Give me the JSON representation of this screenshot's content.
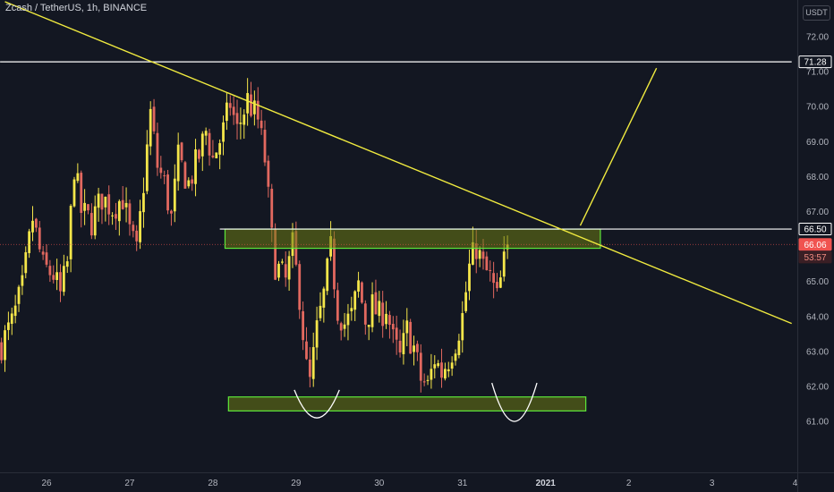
{
  "header": {
    "title": "Zcash / TetherUS, 1h, BINANCE",
    "currency": "USDT"
  },
  "colors": {
    "background": "#131722",
    "bull": "#f5e64a",
    "bear": "#e2685f",
    "trendline": "#f0ea3f",
    "zone_fill": "#6b7a12",
    "zone_border": "#5ee83a",
    "resistance_line": "#ffffff",
    "current_price_badge": "#f05350"
  },
  "chart_data": {
    "type": "candlestick",
    "symbol": "Zcash / TetherUS",
    "interval": "1h",
    "exchange": "BINANCE",
    "ylim": [
      60.4,
      72.6
    ],
    "y_ticks": [
      "72.00",
      "71.00",
      "70.00",
      "69.00",
      "68.00",
      "67.00",
      "65.00",
      "64.00",
      "63.00",
      "62.00",
      "61.00"
    ],
    "x_ticks": [
      {
        "label": "26",
        "time": 0,
        "bold": false
      },
      {
        "label": "27",
        "time": 24,
        "bold": false
      },
      {
        "label": "28",
        "time": 48,
        "bold": false
      },
      {
        "label": "29",
        "time": 72,
        "bold": false
      },
      {
        "label": "30",
        "time": 96,
        "bold": false
      },
      {
        "label": "31",
        "time": 120,
        "bold": false
      },
      {
        "label": "2021",
        "time": 144,
        "bold": true
      },
      {
        "label": "2",
        "time": 168,
        "bold": false
      },
      {
        "label": "3",
        "time": 192,
        "bold": false
      },
      {
        "label": "4",
        "time": 216,
        "bold": false
      }
    ],
    "x_range": [
      -13.4,
      215
    ],
    "price_labels": [
      {
        "value": 71.28,
        "text": "71.28",
        "style": "outline"
      },
      {
        "value": 66.5,
        "text": "66.50",
        "style": "outline"
      },
      {
        "value": 66.06,
        "text": "66.06",
        "style": "red"
      },
      {
        "value": 65.7,
        "text": "53:57",
        "style": "red-dark"
      }
    ],
    "current_price": 66.06,
    "horizontal_lines": [
      {
        "price": 71.28,
        "from": -13.4,
        "to": 215
      },
      {
        "price": 66.5,
        "from": 50,
        "to": 215
      }
    ],
    "trendlines": [
      {
        "points": [
          [
            -12,
            73.0
          ],
          [
            215,
            63.8
          ]
        ]
      },
      {
        "points": [
          [
            154,
            66.6
          ],
          [
            176,
            71.1
          ]
        ]
      }
    ],
    "zones": [
      {
        "time_from": 51.5,
        "time_to": 159.8,
        "price_from": 65.95,
        "price_to": 66.5
      },
      {
        "time_from": 52.5,
        "time_to": 155.6,
        "price_from": 61.3,
        "price_to": 61.7
      }
    ],
    "arcs": [
      {
        "center_time": 78,
        "start_price": 61.9,
        "bottom_price": 61.1,
        "half_width_time": 6.5
      },
      {
        "center_time": 135,
        "start_price": 62.1,
        "bottom_price": 61.0,
        "half_width_time": 6.5
      }
    ],
    "anchors": [
      {
        "t": -13,
        "p": 63.2
      },
      {
        "t": -10,
        "p": 63.8
      },
      {
        "t": -7,
        "p": 64.8
      },
      {
        "t": -4,
        "p": 66.8
      },
      {
        "t": -1,
        "p": 65.4
      },
      {
        "t": 2,
        "p": 65.2
      },
      {
        "t": 4,
        "p": 64.6
      },
      {
        "t": 6,
        "p": 65.5
      },
      {
        "t": 8,
        "p": 68.3
      },
      {
        "t": 10,
        "p": 67.0
      },
      {
        "t": 13,
        "p": 66.7
      },
      {
        "t": 16,
        "p": 67.4
      },
      {
        "t": 19,
        "p": 67.1
      },
      {
        "t": 22,
        "p": 67.4
      },
      {
        "t": 24,
        "p": 66.4
      },
      {
        "t": 26,
        "p": 65.8
      },
      {
        "t": 28,
        "p": 67.8
      },
      {
        "t": 30,
        "p": 69.8
      },
      {
        "t": 32,
        "p": 68.3
      },
      {
        "t": 34,
        "p": 67.8
      },
      {
        "t": 36,
        "p": 66.8
      },
      {
        "t": 38,
        "p": 68.5
      },
      {
        "t": 41,
        "p": 67.8
      },
      {
        "t": 44,
        "p": 68.6
      },
      {
        "t": 46,
        "p": 69.3
      },
      {
        "t": 48,
        "p": 68.5
      },
      {
        "t": 51,
        "p": 69.3
      },
      {
        "t": 53,
        "p": 70.1
      },
      {
        "t": 55,
        "p": 69.3
      },
      {
        "t": 58,
        "p": 70.2
      },
      {
        "t": 61,
        "p": 69.6
      },
      {
        "t": 63,
        "p": 68.5
      },
      {
        "t": 65,
        "p": 66.2
      },
      {
        "t": 66,
        "p": 65.5
      },
      {
        "t": 69,
        "p": 65.0
      },
      {
        "t": 71,
        "p": 66.0
      },
      {
        "t": 73,
        "p": 64.6
      },
      {
        "t": 75,
        "p": 62.5
      },
      {
        "t": 76,
        "p": 62.1
      },
      {
        "t": 78,
        "p": 63.6
      },
      {
        "t": 80,
        "p": 64.6
      },
      {
        "t": 82,
        "p": 65.9
      },
      {
        "t": 84,
        "p": 64.2
      },
      {
        "t": 86,
        "p": 63.8
      },
      {
        "t": 88,
        "p": 64.0
      },
      {
        "t": 90,
        "p": 64.9
      },
      {
        "t": 92,
        "p": 63.9
      },
      {
        "t": 94,
        "p": 64.3
      },
      {
        "t": 96,
        "p": 64.0
      },
      {
        "t": 98,
        "p": 64.3
      },
      {
        "t": 100,
        "p": 63.3
      },
      {
        "t": 102,
        "p": 62.8
      },
      {
        "t": 104,
        "p": 63.6
      },
      {
        "t": 106,
        "p": 63.1
      },
      {
        "t": 108,
        "p": 62.2
      },
      {
        "t": 110,
        "p": 62.0
      },
      {
        "t": 112,
        "p": 62.8
      },
      {
        "t": 114,
        "p": 62.4
      },
      {
        "t": 116,
        "p": 62.8
      },
      {
        "t": 118,
        "p": 63.3
      },
      {
        "t": 120,
        "p": 64.0
      },
      {
        "t": 122,
        "p": 65.4
      },
      {
        "t": 124,
        "p": 66.0
      },
      {
        "t": 126,
        "p": 65.4
      },
      {
        "t": 128,
        "p": 65.1
      },
      {
        "t": 130,
        "p": 64.5
      },
      {
        "t": 131,
        "p": 65.0
      },
      {
        "t": 133,
        "p": 66.06
      }
    ]
  }
}
